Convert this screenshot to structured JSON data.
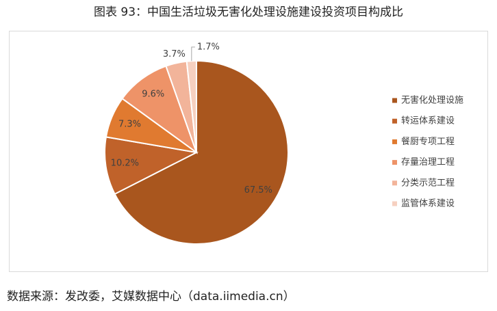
{
  "chart_data": {
    "type": "pie",
    "title": "图表 93：中国生活垃圾无害化处理设施建设投资项目构成比",
    "categories": [
      "无害化处理设施",
      "转运体系建设",
      "餐厨专项工程",
      "存量治理工程",
      "分类示范工程",
      "监管体系建设"
    ],
    "values": [
      67.5,
      10.2,
      7.3,
      9.6,
      3.7,
      1.7
    ],
    "value_labels": [
      "67.5%",
      "10.2%",
      "7.3%",
      "9.6%",
      "3.7%",
      "1.7%"
    ],
    "colors": [
      "#a9561e",
      "#c0622a",
      "#e07a30",
      "#ee9368",
      "#f2b49a",
      "#f6d0c0"
    ],
    "legend": "right",
    "source": "数据来源：发改委，艾媒数据中心（data.iimedia.cn）"
  }
}
